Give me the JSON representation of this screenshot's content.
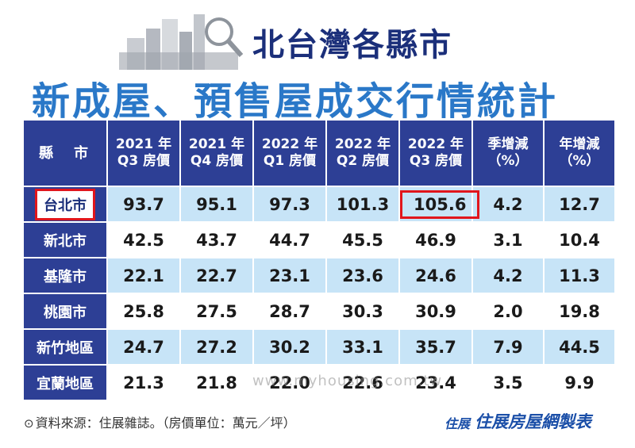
{
  "header": {
    "title_line1": "北台灣各縣市",
    "title_line2": "新成屋、預售屋成交行情統計"
  },
  "chart_data": {
    "type": "table",
    "title": "北台灣各縣市 新成屋、預售屋成交行情統計",
    "columns": [
      {
        "line1": "縣　市",
        "line2": ""
      },
      {
        "line1": "2021 年",
        "line2": "Q3 房價"
      },
      {
        "line1": "2021 年",
        "line2": "Q4 房價"
      },
      {
        "line1": "2022 年",
        "line2": "Q1 房價"
      },
      {
        "line1": "2022 年",
        "line2": "Q2 房價"
      },
      {
        "line1": "2022 年",
        "line2": "Q3 房價"
      },
      {
        "line1": "季增減",
        "line2": "（%）"
      },
      {
        "line1": "年增減",
        "line2": "（%）"
      }
    ],
    "rows": [
      {
        "county": "台北市",
        "values": [
          "93.7",
          "95.1",
          "97.3",
          "101.3",
          "105.6",
          "4.2",
          "12.7"
        ],
        "highlighted": true
      },
      {
        "county": "新北市",
        "values": [
          "42.5",
          "43.7",
          "44.7",
          "45.5",
          "46.9",
          "3.1",
          "10.4"
        ]
      },
      {
        "county": "基隆市",
        "values": [
          "22.1",
          "22.7",
          "23.1",
          "23.6",
          "24.6",
          "4.2",
          "11.3"
        ]
      },
      {
        "county": "桃園市",
        "values": [
          "25.8",
          "27.5",
          "28.7",
          "30.3",
          "30.9",
          "2.0",
          "19.8"
        ]
      },
      {
        "county": "新竹地區",
        "values": [
          "24.7",
          "27.2",
          "30.2",
          "33.1",
          "35.7",
          "7.9",
          "44.5"
        ]
      },
      {
        "county": "宜蘭地區",
        "values": [
          "21.3",
          "21.8",
          "22.0",
          "22.6",
          "23.4",
          "3.5",
          "9.9"
        ]
      }
    ],
    "highlight_cell": {
      "row": 0,
      "col": 4
    },
    "colors": {
      "header_bg": "#2d3f95",
      "stripe": "#c7e4f7",
      "highlight": "#e1161c"
    }
  },
  "footer": {
    "source_note": "資料來源：住展雜誌。（房價單位：萬元／坪）",
    "brand_logo": "住展",
    "brand_text": "住展房屋網製表",
    "watermark": "www.myhousing.com.tw"
  }
}
